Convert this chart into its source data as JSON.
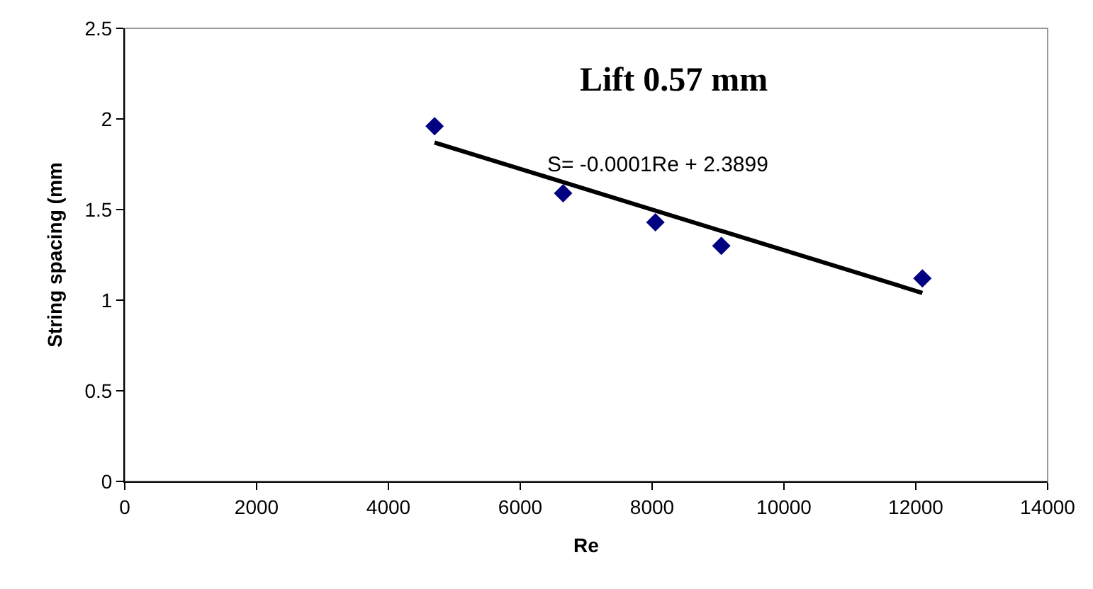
{
  "chart_data": {
    "type": "scatter",
    "title": "Lift 0.57 mm",
    "xlabel": "Re",
    "ylabel": "String spacing (mm",
    "annotations": [
      "S= -0.0001Re + 2.3899"
    ],
    "series": [
      {
        "color": "#000080",
        "marker": "diamond",
        "x": [
          4700,
          6650,
          8050,
          9050,
          12100
        ],
        "values": [
          1.96,
          1.59,
          1.43,
          1.3,
          1.12
        ]
      },
      {
        "type": "line",
        "color": "#000000",
        "marker": "none",
        "line_style": "solid",
        "x": [
          4700,
          12100
        ],
        "values": [
          1.87,
          1.04
        ]
      }
    ],
    "xlim": [
      0,
      14000
    ],
    "xticks": [
      0,
      2000,
      4000,
      6000,
      8000,
      10000,
      12000,
      14000
    ],
    "ylim": [
      0,
      2.5
    ],
    "yticks": [
      0,
      0.5,
      1,
      1.5,
      2,
      2.5
    ],
    "grid": false
  }
}
